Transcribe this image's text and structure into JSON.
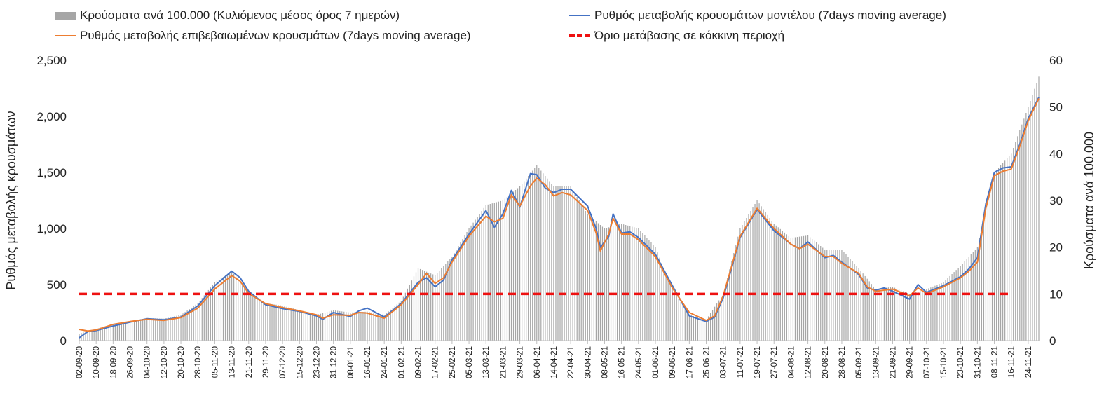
{
  "chart_data": {
    "type": "bar+line",
    "title": "",
    "ylabel": "Ρυθμός μεταβολής κρουσμάτων",
    "y2label": "Κρούσματα ανά 100.000",
    "ylim": [
      0,
      2500
    ],
    "y2lim": [
      0,
      60
    ],
    "yticks": [
      "0",
      "500",
      "1,000",
      "1,500",
      "2,000",
      "2,500"
    ],
    "y2ticks": [
      "0",
      "10",
      "20",
      "30",
      "40",
      "50",
      "60"
    ],
    "grid": false,
    "legend_position": "top",
    "x_start": "2020-09-02",
    "x_end": "2021-11-29",
    "xtick_labels": [
      "02-09-20",
      "10-09-20",
      "18-09-20",
      "26-09-20",
      "04-10-20",
      "12-10-20",
      "20-10-20",
      "28-10-20",
      "05-11-20",
      "13-11-20",
      "21-11-20",
      "29-11-20",
      "07-12-20",
      "15-12-20",
      "23-12-20",
      "31-12-20",
      "08-01-21",
      "16-01-21",
      "24-01-21",
      "01-02-21",
      "09-02-21",
      "17-02-21",
      "25-02-21",
      "05-03-21",
      "13-03-21",
      "21-03-21",
      "29-03-21",
      "06-04-21",
      "14-04-21",
      "22-04-21",
      "30-04-21",
      "08-05-21",
      "16-05-21",
      "24-05-21",
      "01-06-21",
      "09-06-21",
      "17-06-21",
      "25-06-21",
      "03-07-21",
      "11-07-21",
      "19-07-21",
      "27-07-21",
      "04-08-21",
      "12-08-21",
      "20-08-21",
      "28-08-21",
      "05-09-21",
      "13-09-21",
      "21-09-21",
      "29-09-21",
      "07-10-21",
      "15-10-21",
      "23-10-21",
      "31-10-21",
      "08-11-21",
      "16-11-21",
      "24-11-21"
    ],
    "series": [
      {
        "name": "Κρούσματα ανά 100.000 (Κυλιόμενος μέσος όρος 7 ημερών)",
        "kind": "bar",
        "axis": "right",
        "color": "#a6a6a6",
        "points": [
          [
            "02-09-20",
            1.5
          ],
          [
            "10-09-20",
            2.5
          ],
          [
            "18-09-20",
            3.5
          ],
          [
            "26-09-20",
            4.2
          ],
          [
            "04-10-20",
            4.8
          ],
          [
            "12-10-20",
            4.7
          ],
          [
            "20-10-20",
            5.5
          ],
          [
            "28-10-20",
            8.0
          ],
          [
            "05-11-20",
            12.5
          ],
          [
            "13-11-20",
            14.8
          ],
          [
            "21-11-20",
            10.5
          ],
          [
            "29-11-20",
            8.0
          ],
          [
            "07-12-20",
            7.5
          ],
          [
            "15-12-20",
            6.5
          ],
          [
            "23-12-20",
            5.5
          ],
          [
            "31-12-20",
            6.5
          ],
          [
            "08-01-21",
            6.0
          ],
          [
            "16-01-21",
            6.2
          ],
          [
            "24-01-21",
            5.5
          ],
          [
            "01-02-21",
            8.5
          ],
          [
            "09-02-21",
            15.5
          ],
          [
            "17-02-21",
            14.0
          ],
          [
            "25-02-21",
            18.0
          ],
          [
            "05-03-21",
            24.0
          ],
          [
            "13-03-21",
            29.0
          ],
          [
            "21-03-21",
            30.0
          ],
          [
            "29-03-21",
            33.0
          ],
          [
            "06-04-21",
            37.5
          ],
          [
            "14-04-21",
            33.0
          ],
          [
            "22-04-21",
            33.0
          ],
          [
            "30-04-21",
            27.0
          ],
          [
            "08-05-21",
            24.0
          ],
          [
            "16-05-21",
            25.0
          ],
          [
            "24-05-21",
            24.0
          ],
          [
            "01-06-21",
            20.0
          ],
          [
            "09-06-21",
            11.0
          ],
          [
            "17-06-21",
            5.5
          ],
          [
            "25-06-21",
            4.5
          ],
          [
            "03-07-21",
            10.0
          ],
          [
            "11-07-21",
            24.0
          ],
          [
            "19-07-21",
            30.0
          ],
          [
            "27-07-21",
            25.0
          ],
          [
            "04-08-21",
            22.0
          ],
          [
            "12-08-21",
            22.5
          ],
          [
            "20-08-21",
            19.5
          ],
          [
            "28-08-21",
            19.5
          ],
          [
            "05-09-21",
            15.5
          ],
          [
            "13-09-21",
            11.0
          ],
          [
            "21-09-21",
            11.5
          ],
          [
            "29-09-21",
            10.0
          ],
          [
            "07-10-21",
            11.0
          ],
          [
            "15-10-21",
            12.5
          ],
          [
            "23-10-21",
            16.0
          ],
          [
            "31-10-21",
            20.0
          ],
          [
            "08-11-21",
            36.0
          ],
          [
            "16-11-21",
            40.0
          ],
          [
            "24-11-21",
            50.0
          ],
          [
            "29-11-21",
            56.5
          ]
        ]
      },
      {
        "name": "Ρυθμός μεταβολής κρουσμάτων μοντέλου (7days moving average)",
        "kind": "line",
        "axis": "left",
        "color": "#4472c4",
        "points": [
          [
            "02-09-20",
            25
          ],
          [
            "06-09-20",
            80
          ],
          [
            "10-09-20",
            90
          ],
          [
            "18-09-20",
            130
          ],
          [
            "26-09-20",
            165
          ],
          [
            "04-10-20",
            195
          ],
          [
            "12-10-20",
            185
          ],
          [
            "20-10-20",
            210
          ],
          [
            "28-10-20",
            310
          ],
          [
            "05-11-20",
            490
          ],
          [
            "13-11-20",
            620
          ],
          [
            "17-11-20",
            560
          ],
          [
            "21-11-20",
            440
          ],
          [
            "29-11-20",
            320
          ],
          [
            "07-12-20",
            285
          ],
          [
            "15-12-20",
            260
          ],
          [
            "23-12-20",
            220
          ],
          [
            "26-12-20",
            190
          ],
          [
            "31-12-20",
            250
          ],
          [
            "08-01-21",
            215
          ],
          [
            "12-01-21",
            265
          ],
          [
            "16-01-21",
            290
          ],
          [
            "24-01-21",
            210
          ],
          [
            "01-02-21",
            330
          ],
          [
            "09-02-21",
            520
          ],
          [
            "13-02-21",
            560
          ],
          [
            "17-02-21",
            480
          ],
          [
            "21-02-21",
            540
          ],
          [
            "25-02-21",
            720
          ],
          [
            "05-03-21",
            950
          ],
          [
            "13-03-21",
            1160
          ],
          [
            "17-03-21",
            1010
          ],
          [
            "21-03-21",
            1130
          ],
          [
            "25-03-21",
            1340
          ],
          [
            "29-03-21",
            1190
          ],
          [
            "03-04-21",
            1490
          ],
          [
            "06-04-21",
            1480
          ],
          [
            "10-04-21",
            1360
          ],
          [
            "14-04-21",
            1320
          ],
          [
            "18-04-21",
            1350
          ],
          [
            "22-04-21",
            1350
          ],
          [
            "30-04-21",
            1200
          ],
          [
            "04-05-21",
            1000
          ],
          [
            "06-05-21",
            830
          ],
          [
            "10-05-21",
            930
          ],
          [
            "12-05-21",
            1130
          ],
          [
            "16-05-21",
            960
          ],
          [
            "20-05-21",
            970
          ],
          [
            "24-05-21",
            920
          ],
          [
            "01-06-21",
            770
          ],
          [
            "09-06-21",
            490
          ],
          [
            "17-06-21",
            220
          ],
          [
            "25-06-21",
            170
          ],
          [
            "29-06-21",
            210
          ],
          [
            "03-07-21",
            380
          ],
          [
            "11-07-21",
            920
          ],
          [
            "19-07-21",
            1170
          ],
          [
            "27-07-21",
            980
          ],
          [
            "04-08-21",
            860
          ],
          [
            "08-08-21",
            820
          ],
          [
            "12-08-21",
            880
          ],
          [
            "20-08-21",
            740
          ],
          [
            "24-08-21",
            760
          ],
          [
            "28-08-21",
            700
          ],
          [
            "05-09-21",
            590
          ],
          [
            "09-09-21",
            470
          ],
          [
            "13-09-21",
            450
          ],
          [
            "17-09-21",
            470
          ],
          [
            "21-09-21",
            440
          ],
          [
            "29-09-21",
            370
          ],
          [
            "03-10-21",
            500
          ],
          [
            "07-10-21",
            430
          ],
          [
            "15-10-21",
            490
          ],
          [
            "23-10-21",
            570
          ],
          [
            "27-10-21",
            640
          ],
          [
            "31-10-21",
            740
          ],
          [
            "04-11-21",
            1220
          ],
          [
            "08-11-21",
            1500
          ],
          [
            "12-11-21",
            1540
          ],
          [
            "16-11-21",
            1550
          ],
          [
            "20-11-21",
            1750
          ],
          [
            "24-11-21",
            1980
          ],
          [
            "29-11-21",
            2170
          ]
        ]
      },
      {
        "name": "Ρυθμός μεταβολής επιβεβαιωμένων κρουσμάτων (7days moving average)",
        "kind": "line",
        "axis": "left",
        "color": "#ed7d31",
        "points": [
          [
            "02-09-20",
            100
          ],
          [
            "06-09-20",
            85
          ],
          [
            "10-09-20",
            95
          ],
          [
            "18-09-20",
            145
          ],
          [
            "26-09-20",
            170
          ],
          [
            "04-10-20",
            190
          ],
          [
            "12-10-20",
            180
          ],
          [
            "20-10-20",
            205
          ],
          [
            "28-10-20",
            290
          ],
          [
            "05-11-20",
            460
          ],
          [
            "13-11-20",
            580
          ],
          [
            "17-11-20",
            530
          ],
          [
            "21-11-20",
            420
          ],
          [
            "29-11-20",
            330
          ],
          [
            "07-12-20",
            295
          ],
          [
            "15-12-20",
            265
          ],
          [
            "23-12-20",
            230
          ],
          [
            "26-12-20",
            200
          ],
          [
            "31-12-20",
            230
          ],
          [
            "08-01-21",
            225
          ],
          [
            "12-01-21",
            250
          ],
          [
            "16-01-21",
            245
          ],
          [
            "24-01-21",
            200
          ],
          [
            "01-02-21",
            320
          ],
          [
            "09-02-21",
            500
          ],
          [
            "13-02-21",
            600
          ],
          [
            "17-02-21",
            510
          ],
          [
            "21-02-21",
            560
          ],
          [
            "25-02-21",
            700
          ],
          [
            "05-03-21",
            930
          ],
          [
            "13-03-21",
            1110
          ],
          [
            "17-03-21",
            1060
          ],
          [
            "21-03-21",
            1090
          ],
          [
            "25-03-21",
            1300
          ],
          [
            "29-03-21",
            1200
          ],
          [
            "03-04-21",
            1380
          ],
          [
            "06-04-21",
            1450
          ],
          [
            "10-04-21",
            1390
          ],
          [
            "14-04-21",
            1290
          ],
          [
            "18-04-21",
            1320
          ],
          [
            "22-04-21",
            1300
          ],
          [
            "30-04-21",
            1160
          ],
          [
            "04-05-21",
            960
          ],
          [
            "06-05-21",
            800
          ],
          [
            "10-05-21",
            950
          ],
          [
            "12-05-21",
            1090
          ],
          [
            "16-05-21",
            950
          ],
          [
            "20-05-21",
            950
          ],
          [
            "24-05-21",
            900
          ],
          [
            "01-06-21",
            750
          ],
          [
            "09-06-21",
            470
          ],
          [
            "17-06-21",
            250
          ],
          [
            "25-06-21",
            180
          ],
          [
            "29-06-21",
            220
          ],
          [
            "03-07-21",
            400
          ],
          [
            "11-07-21",
            930
          ],
          [
            "19-07-21",
            1180
          ],
          [
            "27-07-21",
            1000
          ],
          [
            "04-08-21",
            860
          ],
          [
            "08-08-21",
            820
          ],
          [
            "12-08-21",
            860
          ],
          [
            "20-08-21",
            750
          ],
          [
            "24-08-21",
            750
          ],
          [
            "28-08-21",
            690
          ],
          [
            "05-09-21",
            600
          ],
          [
            "09-09-21",
            480
          ],
          [
            "13-09-21",
            440
          ],
          [
            "17-09-21",
            450
          ],
          [
            "21-09-21",
            460
          ],
          [
            "29-09-21",
            400
          ],
          [
            "03-10-21",
            470
          ],
          [
            "07-10-21",
            420
          ],
          [
            "15-10-21",
            480
          ],
          [
            "23-10-21",
            560
          ],
          [
            "27-10-21",
            620
          ],
          [
            "31-10-21",
            700
          ],
          [
            "04-11-21",
            1180
          ],
          [
            "08-11-21",
            1470
          ],
          [
            "12-11-21",
            1510
          ],
          [
            "16-11-21",
            1530
          ],
          [
            "20-11-21",
            1730
          ],
          [
            "24-11-21",
            1960
          ],
          [
            "29-11-21",
            2160
          ]
        ]
      },
      {
        "name": "Όριο μετάβασης σε κόκκινη περιοχή",
        "kind": "hline",
        "axis": "right",
        "color": "#ee1111",
        "value": 10
      }
    ]
  }
}
